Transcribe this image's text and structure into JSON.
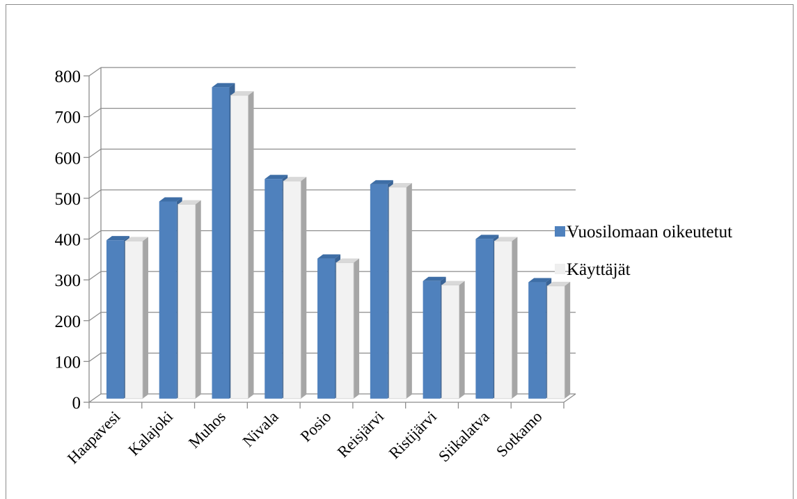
{
  "chart_data": {
    "type": "bar",
    "categories": [
      "Haapavesi",
      "Kalajoki",
      "Muhos",
      "Nivala",
      "Posio",
      "Reisjärvi",
      "Ristijärvi",
      "Siikalatva",
      "Sotkamo"
    ],
    "series": [
      {
        "name": "Vuosilomaan oikeutetut",
        "values": [
          390,
          485,
          765,
          540,
          345,
          527,
          290,
          393,
          287
        ],
        "color": "#4f81bd"
      },
      {
        "name": "Käyttäjät",
        "values": [
          388,
          478,
          745,
          535,
          335,
          520,
          280,
          388,
          278
        ],
        "color": "#f2f2f2"
      }
    ],
    "yticks": [
      "0",
      "100",
      "200",
      "300",
      "400",
      "500",
      "600",
      "700",
      "800"
    ],
    "ylim": [
      0,
      800
    ],
    "grid": true,
    "legend": "right",
    "style": "3d-clustered-column"
  }
}
